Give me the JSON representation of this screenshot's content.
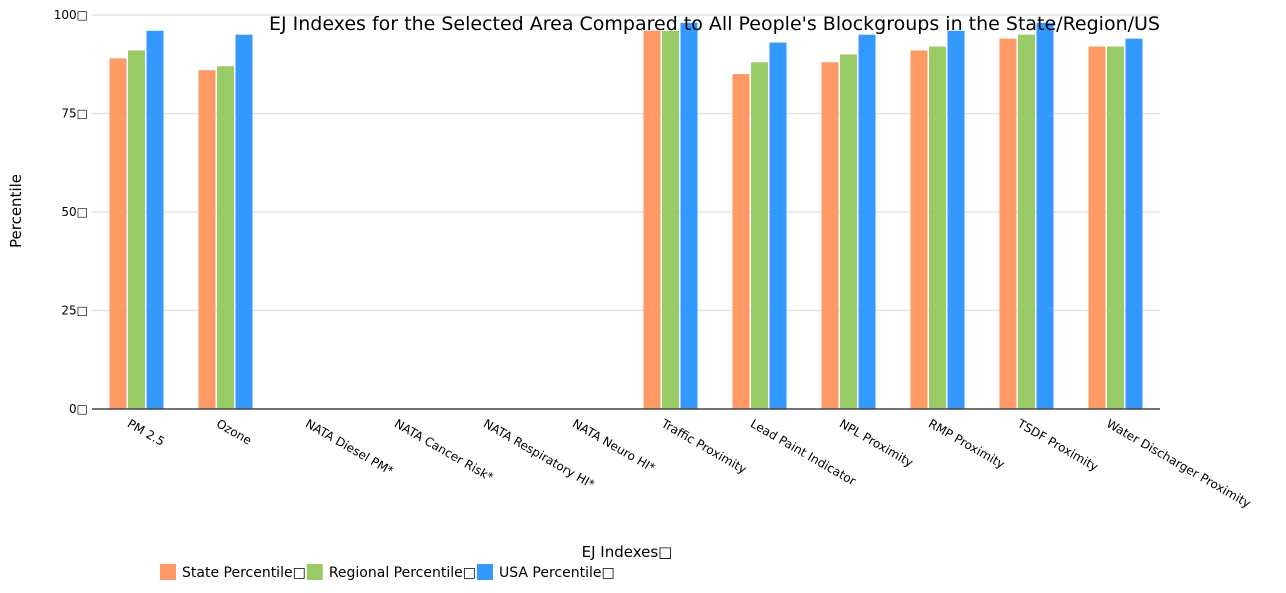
{
  "chart_data": {
    "type": "bar",
    "title": "EJ Indexes for the Selected Area Compared to All People's Blockgroups in the State/Region/US",
    "xlabel": "EJ Indexes□",
    "ylabel": "Percentile",
    "ylim": [
      0,
      100
    ],
    "yticks": [
      {
        "value": 0,
        "label": "0□"
      },
      {
        "value": 25,
        "label": "25□"
      },
      {
        "value": 50,
        "label": "50□"
      },
      {
        "value": 75,
        "label": "75□"
      },
      {
        "value": 100,
        "label": "100□"
      }
    ],
    "grid": true,
    "legend_position": "bottom-left",
    "categories": [
      "PM 2.5",
      "Ozone",
      "NATA Diesel PM*",
      "NATA Cancer Risk*",
      "NATA Respiratory HI*",
      "NATA Neuro HI*",
      "Traffic Proximity",
      "Lead Paint Indicator",
      "NPL Proximity",
      "RMP Proximity",
      "TSDF Proximity",
      "Water Discharger Proximity"
    ],
    "series": [
      {
        "name": "State Percentile□",
        "color": "#ff9966",
        "values": [
          89,
          86,
          null,
          null,
          null,
          null,
          96,
          85,
          88,
          91,
          94,
          92
        ]
      },
      {
        "name": "Regional Percentile□",
        "color": "#99cc66",
        "values": [
          91,
          87,
          null,
          null,
          null,
          null,
          96,
          88,
          90,
          92,
          95,
          92
        ]
      },
      {
        "name": "USA Percentile□",
        "color": "#3399ff",
        "values": [
          96,
          95,
          null,
          null,
          null,
          null,
          98,
          93,
          95,
          96,
          98,
          94
        ]
      }
    ]
  }
}
